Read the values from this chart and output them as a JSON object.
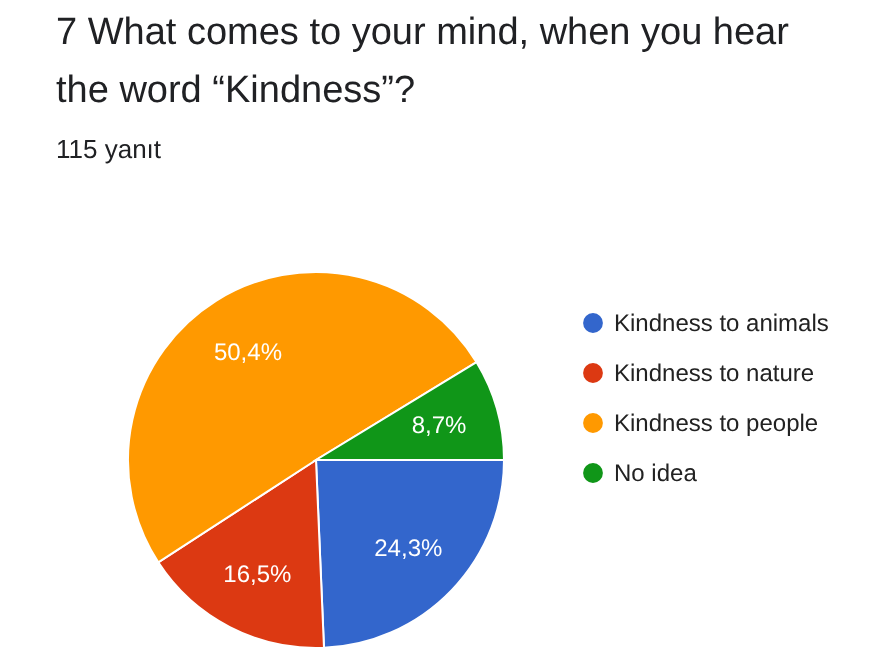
{
  "chart_data": {
    "type": "pie",
    "title": "7 What comes to your mind, when you hear the word “Kindness”?",
    "subtitle": "115 yanıt",
    "categories": [
      "Kindness to animals",
      "Kindness to nature",
      "Kindness to people",
      "No idea"
    ],
    "values": [
      24.3,
      16.5,
      50.4,
      8.7
    ],
    "value_labels": [
      "24,3%",
      "16,5%",
      "50,4%",
      "8,7%"
    ],
    "colors": [
      "#3366cc",
      "#dc3912",
      "#ff9900",
      "#109618"
    ],
    "legend": "right"
  }
}
